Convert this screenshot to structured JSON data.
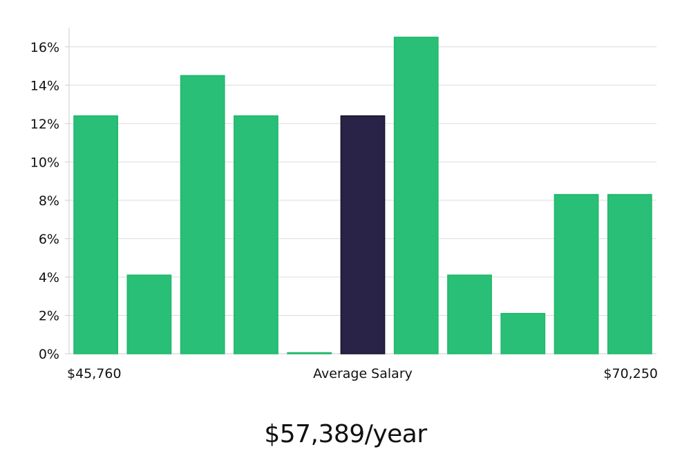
{
  "chart_data": {
    "type": "bar",
    "ylim": [
      0,
      17
    ],
    "yticks": [
      0,
      2,
      4,
      6,
      8,
      10,
      12,
      14,
      16
    ],
    "ytick_suffix": "%",
    "values": [
      12.4,
      4.1,
      14.5,
      12.4,
      0,
      12.4,
      16.5,
      4.1,
      2.1,
      8.3,
      8.3
    ],
    "highlight_index": 5,
    "x_labels": {
      "min": "$45,760",
      "middle": "Average Salary",
      "max": "$70,250"
    },
    "colors": {
      "bar": "#29bf76",
      "bar_edge": "#1fb86a",
      "highlight": "#282347",
      "highlight_edge": "#17142e"
    }
  },
  "summary": {
    "average_salary": "$57,389/year"
  }
}
